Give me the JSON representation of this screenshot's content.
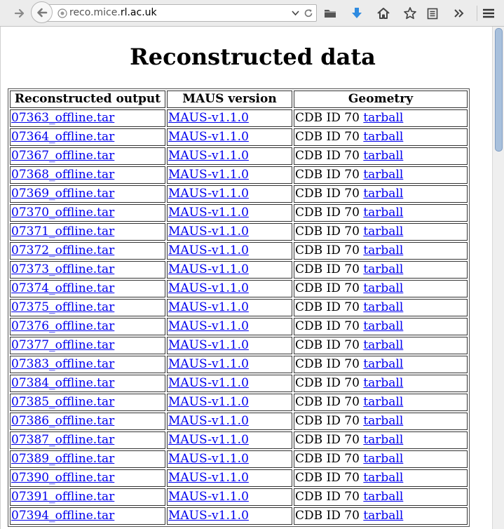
{
  "browser": {
    "url_prefix": "reco.mice.",
    "url_host": "rl.ac.uk"
  },
  "page": {
    "title": "Reconstructed data",
    "headers": [
      "Reconstructed output",
      "MAUS version",
      "Geometry"
    ],
    "rows": [
      {
        "output": "07363_offline.tar",
        "maus": "MAUS-v1.1.0",
        "geometry": "CDB ID 70",
        "link": "tarball"
      },
      {
        "output": "07364_offline.tar",
        "maus": "MAUS-v1.1.0",
        "geometry": "CDB ID 70",
        "link": "tarball"
      },
      {
        "output": "07367_offline.tar",
        "maus": "MAUS-v1.1.0",
        "geometry": "CDB ID 70",
        "link": "tarball"
      },
      {
        "output": "07368_offline.tar",
        "maus": "MAUS-v1.1.0",
        "geometry": "CDB ID 70",
        "link": "tarball"
      },
      {
        "output": "07369_offline.tar",
        "maus": "MAUS-v1.1.0",
        "geometry": "CDB ID 70",
        "link": "tarball"
      },
      {
        "output": "07370_offline.tar",
        "maus": "MAUS-v1.1.0",
        "geometry": "CDB ID 70",
        "link": "tarball"
      },
      {
        "output": "07371_offline.tar",
        "maus": "MAUS-v1.1.0",
        "geometry": "CDB ID 70",
        "link": "tarball"
      },
      {
        "output": "07372_offline.tar",
        "maus": "MAUS-v1.1.0",
        "geometry": "CDB ID 70",
        "link": "tarball"
      },
      {
        "output": "07373_offline.tar",
        "maus": "MAUS-v1.1.0",
        "geometry": "CDB ID 70",
        "link": "tarball"
      },
      {
        "output": "07374_offline.tar",
        "maus": "MAUS-v1.1.0",
        "geometry": "CDB ID 70",
        "link": "tarball"
      },
      {
        "output": "07375_offline.tar",
        "maus": "MAUS-v1.1.0",
        "geometry": "CDB ID 70",
        "link": "tarball"
      },
      {
        "output": "07376_offline.tar",
        "maus": "MAUS-v1.1.0",
        "geometry": "CDB ID 70",
        "link": "tarball"
      },
      {
        "output": "07377_offline.tar",
        "maus": "MAUS-v1.1.0",
        "geometry": "CDB ID 70",
        "link": "tarball"
      },
      {
        "output": "07383_offline.tar",
        "maus": "MAUS-v1.1.0",
        "geometry": "CDB ID 70",
        "link": "tarball"
      },
      {
        "output": "07384_offline.tar",
        "maus": "MAUS-v1.1.0",
        "geometry": "CDB ID 70",
        "link": "tarball"
      },
      {
        "output": "07385_offline.tar",
        "maus": "MAUS-v1.1.0",
        "geometry": "CDB ID 70",
        "link": "tarball"
      },
      {
        "output": "07386_offline.tar",
        "maus": "MAUS-v1.1.0",
        "geometry": "CDB ID 70",
        "link": "tarball"
      },
      {
        "output": "07387_offline.tar",
        "maus": "MAUS-v1.1.0",
        "geometry": "CDB ID 70",
        "link": "tarball"
      },
      {
        "output": "07389_offline.tar",
        "maus": "MAUS-v1.1.0",
        "geometry": "CDB ID 70",
        "link": "tarball"
      },
      {
        "output": "07390_offline.tar",
        "maus": "MAUS-v1.1.0",
        "geometry": "CDB ID 70",
        "link": "tarball"
      },
      {
        "output": "07391_offline.tar",
        "maus": "MAUS-v1.1.0",
        "geometry": "CDB ID 70",
        "link": "tarball"
      },
      {
        "output": "07394_offline.tar",
        "maus": "MAUS-v1.1.0",
        "geometry": "CDB ID 70",
        "link": "tarball"
      }
    ]
  },
  "colors": {
    "link": "#0000ee",
    "download_arrow": "#2f8be0",
    "scroll_thumb": "#a8c0dc"
  },
  "icons": [
    "forward-arrow-icon",
    "back-arrow-icon",
    "globe-icon",
    "chevron-down-icon",
    "reload-icon",
    "folder-icon",
    "download-arrow-icon",
    "home-icon",
    "star-icon",
    "reading-list-icon",
    "overflow-chevrons-icon",
    "hamburger-menu-icon"
  ]
}
